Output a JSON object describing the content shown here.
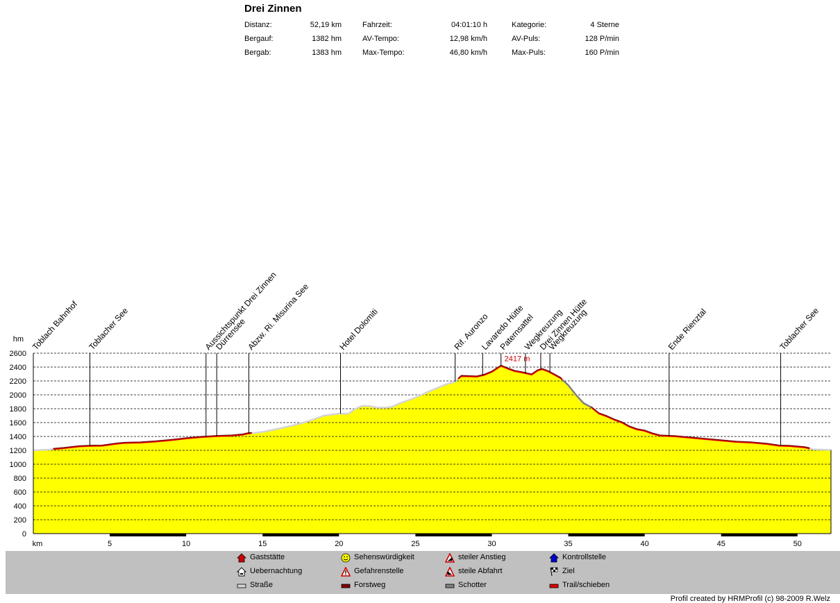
{
  "stats": {
    "title": "Drei Zinnen",
    "rows": [
      [
        {
          "label": "Distanz:",
          "value": "52,19 km"
        },
        {
          "label": "Fahrzeit:",
          "value": "04:01:10 h"
        },
        {
          "label": "Kategorie:",
          "value": "4 Sterne"
        }
      ],
      [
        {
          "label": "Bergauf:",
          "value": "1382 hm"
        },
        {
          "label": "AV-Tempo:",
          "value": "12,98 km/h"
        },
        {
          "label": "AV-Puls:",
          "value": "128 P/min"
        }
      ],
      [
        {
          "label": "Bergab:",
          "value": "1383 hm"
        },
        {
          "label": "Max-Tempo:",
          "value": "46,80 km/h"
        },
        {
          "label": "Max-Puls:",
          "value": "160 P/min"
        }
      ]
    ]
  },
  "chart_data": {
    "type": "area",
    "xlabel": "km",
    "ylabel": "hm",
    "xlim": [
      0,
      52.19
    ],
    "ylim": [
      0,
      2600
    ],
    "x_ticks": [
      5,
      10,
      15,
      20,
      25,
      30,
      35,
      40,
      45,
      50
    ],
    "y_ticks": [
      0,
      200,
      400,
      600,
      800,
      1000,
      1200,
      1400,
      1600,
      1800,
      2000,
      2200,
      2400,
      2600
    ],
    "grid": "horizontal dashed",
    "peak_label": "2417 m",
    "peak_km": 30.6,
    "peak_elevation": 2417,
    "fill_color": "#ffff00",
    "profile": [
      [
        0,
        1200
      ],
      [
        1,
        1210
      ],
      [
        2,
        1230
      ],
      [
        3,
        1255
      ],
      [
        3.7,
        1262
      ],
      [
        4.5,
        1265
      ],
      [
        5,
        1280
      ],
      [
        5.5,
        1295
      ],
      [
        6,
        1305
      ],
      [
        7,
        1310
      ],
      [
        8,
        1325
      ],
      [
        9,
        1345
      ],
      [
        10,
        1370
      ],
      [
        11,
        1390
      ],
      [
        12,
        1402
      ],
      [
        13,
        1410
      ],
      [
        13.7,
        1425
      ],
      [
        14,
        1440
      ],
      [
        15,
        1465
      ],
      [
        16,
        1510
      ],
      [
        17,
        1560
      ],
      [
        18,
        1620
      ],
      [
        19,
        1700
      ],
      [
        20,
        1730
      ],
      [
        20.6,
        1728
      ],
      [
        21,
        1790
      ],
      [
        21.5,
        1840
      ],
      [
        22,
        1838
      ],
      [
        22.5,
        1815
      ],
      [
        23,
        1815
      ],
      [
        23.5,
        1830
      ],
      [
        24,
        1880
      ],
      [
        25,
        1960
      ],
      [
        26,
        2060
      ],
      [
        27,
        2150
      ],
      [
        27.6,
        2190
      ],
      [
        28,
        2268
      ],
      [
        28.5,
        2265
      ],
      [
        29,
        2260
      ],
      [
        29.5,
        2285
      ],
      [
        30,
        2330
      ],
      [
        30.6,
        2417
      ],
      [
        31,
        2380
      ],
      [
        31.5,
        2340
      ],
      [
        32,
        2320
      ],
      [
        32.6,
        2290
      ],
      [
        33,
        2350
      ],
      [
        33.3,
        2368
      ],
      [
        33.7,
        2335
      ],
      [
        34,
        2300
      ],
      [
        34.5,
        2240
      ],
      [
        35,
        2140
      ],
      [
        35.5,
        2000
      ],
      [
        36,
        1880
      ],
      [
        36.5,
        1820
      ],
      [
        37,
        1730
      ],
      [
        37.5,
        1690
      ],
      [
        38,
        1640
      ],
      [
        38.5,
        1600
      ],
      [
        39,
        1540
      ],
      [
        39.5,
        1500
      ],
      [
        40,
        1480
      ],
      [
        40.5,
        1440
      ],
      [
        41,
        1410
      ],
      [
        42,
        1400
      ],
      [
        43,
        1380
      ],
      [
        44,
        1360
      ],
      [
        45,
        1340
      ],
      [
        46,
        1320
      ],
      [
        47,
        1310
      ],
      [
        48,
        1290
      ],
      [
        48.8,
        1265
      ],
      [
        49.5,
        1260
      ],
      [
        50,
        1250
      ],
      [
        50.5,
        1240
      ],
      [
        51,
        1215
      ],
      [
        52.19,
        1205
      ]
    ],
    "surface_segments": [
      {
        "from": 0,
        "to": 1.3,
        "type": "Straße"
      },
      {
        "from": 1.3,
        "to": 14.3,
        "type": "Trail/schieben"
      },
      {
        "from": 14.3,
        "to": 27.8,
        "type": "Straße"
      },
      {
        "from": 27.8,
        "to": 34.6,
        "type": "Trail/schieben"
      },
      {
        "from": 34.6,
        "to": 36.5,
        "type": "Schotter"
      },
      {
        "from": 36.5,
        "to": 50.8,
        "type": "Trail/schieben"
      },
      {
        "from": 50.8,
        "to": 52.19,
        "type": "Straße"
      }
    ],
    "waypoints": [
      {
        "km": 0,
        "name": "Toblach Bahnhof"
      },
      {
        "km": 3.7,
        "name": "Toblacher See"
      },
      {
        "km": 11.3,
        "name": "Aussichtspunkt Drei Zinnen"
      },
      {
        "km": 12,
        "name": "Dürrensee"
      },
      {
        "km": 14.1,
        "name": "Abzw. Ri. Misurina See"
      },
      {
        "km": 20.1,
        "name": "Hotel Dolomiti"
      },
      {
        "km": 27.6,
        "name": "Rif. Auronzo"
      },
      {
        "km": 29.4,
        "name": "Lavaredo Hütte"
      },
      {
        "km": 30.6,
        "name": "Paternsattel"
      },
      {
        "km": 32.2,
        "name": "Wegkreuzung"
      },
      {
        "km": 33.2,
        "name": "Drei Zinnen Hütte"
      },
      {
        "km": 33.8,
        "name": "Wegkreuzung"
      },
      {
        "km": 41.6,
        "name": "Ende Rienztal"
      },
      {
        "km": 48.9,
        "name": "Toblacher See"
      }
    ]
  },
  "legend": {
    "items": [
      {
        "label": "Gaststätte",
        "icon": "house-red-icon"
      },
      {
        "label": "Sehenswürdigkeit",
        "icon": "smiley-icon"
      },
      {
        "label": "steiler Anstieg",
        "icon": "steep-climb-icon"
      },
      {
        "label": "Kontrollstelle",
        "icon": "house-blue-icon"
      },
      {
        "label": "Uebernachtung",
        "icon": "bed-house-icon"
      },
      {
        "label": "Gefahrenstelle",
        "icon": "warning-icon"
      },
      {
        "label": "steile Abfahrt",
        "icon": "steep-descent-icon"
      },
      {
        "label": "Ziel",
        "icon": "checkered-flag-icon"
      },
      {
        "label": "Straße",
        "icon": "road-swatch-icon",
        "color": "#d4d4d4"
      },
      {
        "label": "Forstweg",
        "icon": "forest-road-swatch-icon",
        "color": "#800000"
      },
      {
        "label": "Schotter",
        "icon": "gravel-swatch-icon",
        "color": "#808080"
      },
      {
        "label": "Trail/schieben",
        "icon": "trail-swatch-icon",
        "color": "#dd0000"
      }
    ]
  },
  "credit": "Profil created by HRMProfil (c) 98-2009 R.Welz"
}
